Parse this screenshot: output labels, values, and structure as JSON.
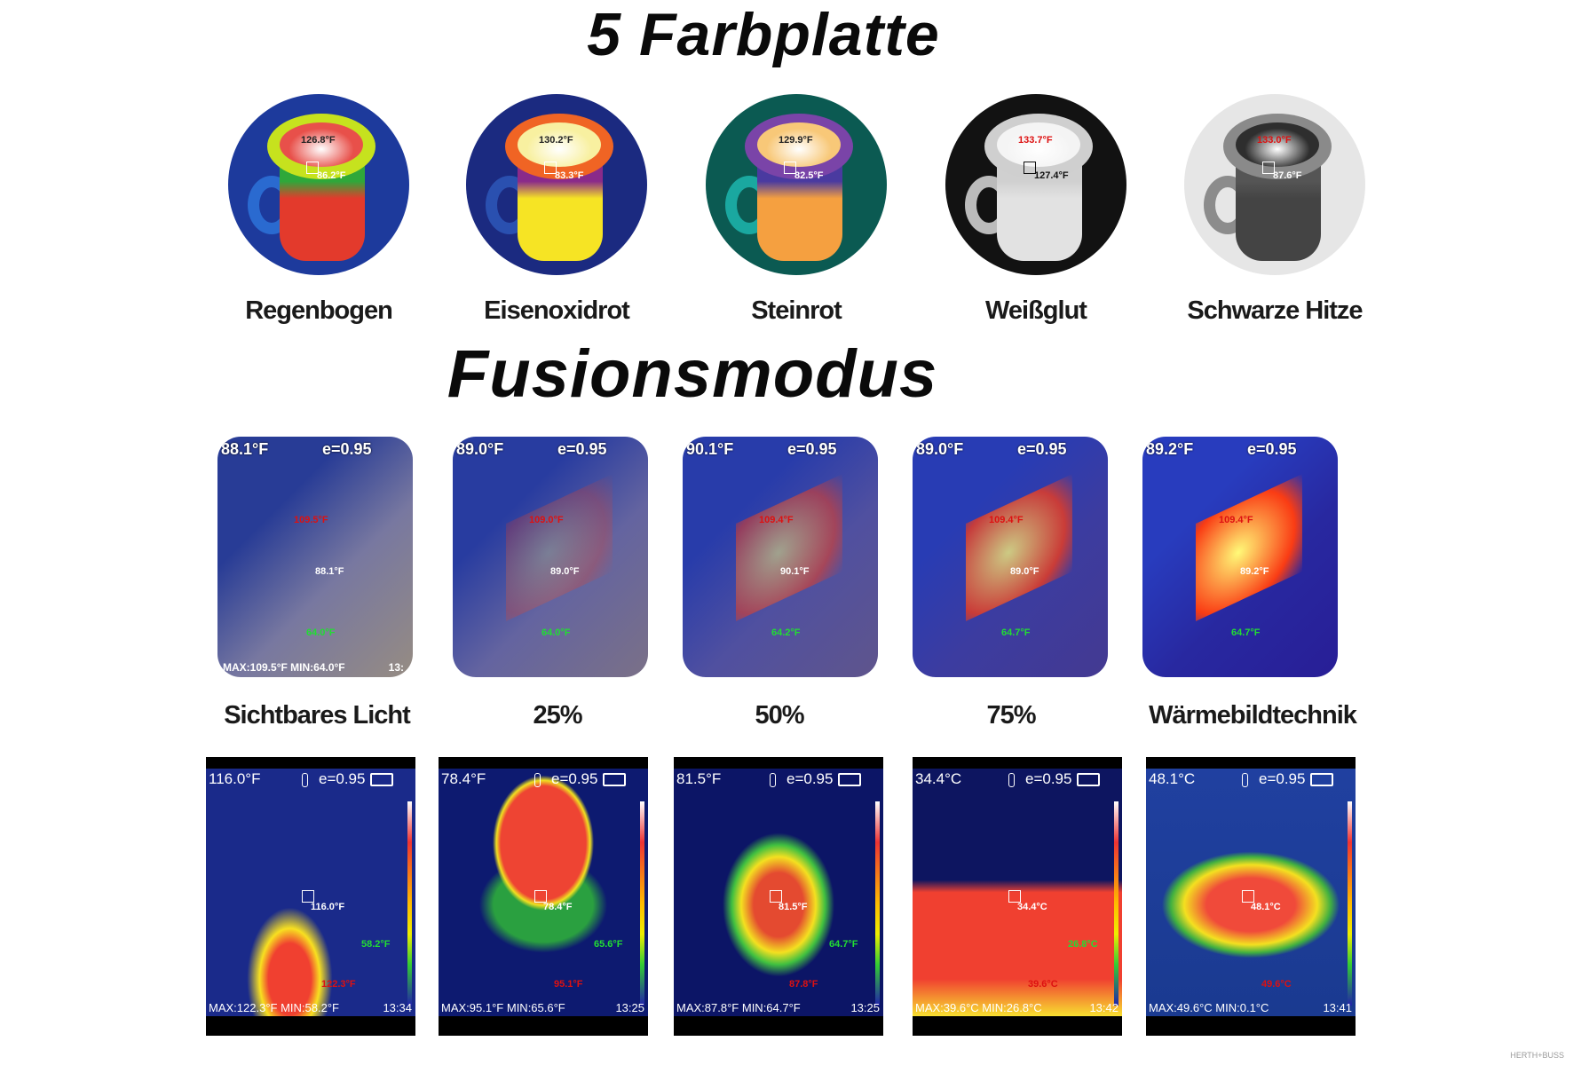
{
  "palette_section": {
    "title": "5 Farbplatte",
    "palettes": [
      {
        "label": "Regenbogen",
        "hot": "126.8°F",
        "center": "86.2°F",
        "colors": {
          "bg": "#1d3a9c",
          "rim": "#c6e21e",
          "inner": "#e8504a",
          "body": "#e33a2c",
          "band": "#2fa83a",
          "handle": "#2a6ad0",
          "text": "#ffffff"
        }
      },
      {
        "label": "Eisenoxidrot",
        "hot": "130.2°F",
        "center": "83.3°F",
        "colors": {
          "bg": "#1b2a80",
          "rim": "#f06424",
          "inner": "#f8f0a0",
          "body": "#f6e424",
          "band": "#8a2a8a",
          "handle": "#2a50b0",
          "text": "#ffffff"
        }
      },
      {
        "label": "Steinrot",
        "hot": "129.9°F",
        "center": "82.5°F",
        "colors": {
          "bg": "#0b5a52",
          "rim": "#7a44a8",
          "inner": "#f8c878",
          "body": "#f5a040",
          "band": "#4a3aa0",
          "handle": "#1aa8a0",
          "text": "#ffffff"
        }
      },
      {
        "label": "Weißglut",
        "hot": "133.7°F",
        "center": "127.4°F",
        "colors": {
          "bg": "#121212",
          "rim": "#cfcfcf",
          "inner": "#f4f4f4",
          "body": "#e2e2e2",
          "band": "#d0d0d0",
          "handle": "#bbbbbb",
          "text": "#111111"
        }
      },
      {
        "label": "Schwarze Hitze",
        "hot": "133.0°F",
        "center": "87.6°F",
        "colors": {
          "bg": "#e6e6e6",
          "rim": "#8a8a8a",
          "inner": "#2e2e2e",
          "body": "#444444",
          "band": "#555555",
          "handle": "#8c8c8c",
          "text": "#ffffff"
        }
      }
    ]
  },
  "fusion_section": {
    "title": "Fusionsmodus",
    "modes": [
      {
        "label": "Sichtbares Licht",
        "top_temp": "88.1°F",
        "emissivity": "e=0.95",
        "hot": "109.5°F",
        "center": "88.1°F",
        "cold": "64.0°F",
        "footer": "MAX:109.5°F  MIN:64.0°F",
        "time": "13:",
        "heat": 0
      },
      {
        "label": "25%",
        "top_temp": "89.0°F",
        "emissivity": "e=0.95",
        "hot": "109.0°F",
        "center": "89.0°F",
        "cold": "64.0°F",
        "heat": 25
      },
      {
        "label": "50%",
        "top_temp": "90.1°F",
        "emissivity": "e=0.95",
        "hot": "109.4°F",
        "center": "90.1°F",
        "cold": "64.2°F",
        "heat": 50
      },
      {
        "label": "75%",
        "top_temp": "89.0°F",
        "emissivity": "e=0.95",
        "hot": "109.4°F",
        "center": "89.0°F",
        "cold": "64.7°F",
        "heat": 75
      },
      {
        "label": "Wärmebildtechnik",
        "top_temp": "89.2°F",
        "emissivity": "e=0.95",
        "hot": "109.4°F",
        "center": "89.2°F",
        "cold": "64.7°F",
        "heat": 100
      }
    ]
  },
  "examples": [
    {
      "top_temp": "116.0°F",
      "emissivity": "e=0.95",
      "center": "116.0°F",
      "cold": "58.2°F",
      "hot": "122.3°F",
      "max": "MAX:122.3°F",
      "min": "MIN:58.2°F",
      "time": "13:34"
    },
    {
      "top_temp": "78.4°F",
      "emissivity": "e=0.95",
      "center": "78.4°F",
      "cold": "65.6°F",
      "hot": "95.1°F",
      "max": "MAX:95.1°F",
      "min": "MIN:65.6°F",
      "time": "13:25"
    },
    {
      "top_temp": "81.5°F",
      "emissivity": "e=0.95",
      "center": "81.5°F",
      "cold": "64.7°F",
      "hot": "87.8°F",
      "max": "MAX:87.8°F",
      "min": "MIN:64.7°F",
      "time": "13:25"
    },
    {
      "top_temp": "34.4°C",
      "emissivity": "e=0.95",
      "center": "34.4°C",
      "cold": "26.8°C",
      "hot": "39.6°C",
      "max": "MAX:39.6°C",
      "min": "MIN:26.8°C",
      "time": "13:42"
    },
    {
      "top_temp": "48.1°C",
      "emissivity": "e=0.95",
      "center": "48.1°C",
      "hot": "49.6°C",
      "max": "MAX:49.6°C",
      "min": "MIN:0.1°C",
      "time": "13:41"
    }
  ],
  "watermark": "HERTH+BUSS",
  "colors": {
    "cold_marker": "#22dd33",
    "hot_marker": "#dd1111"
  }
}
